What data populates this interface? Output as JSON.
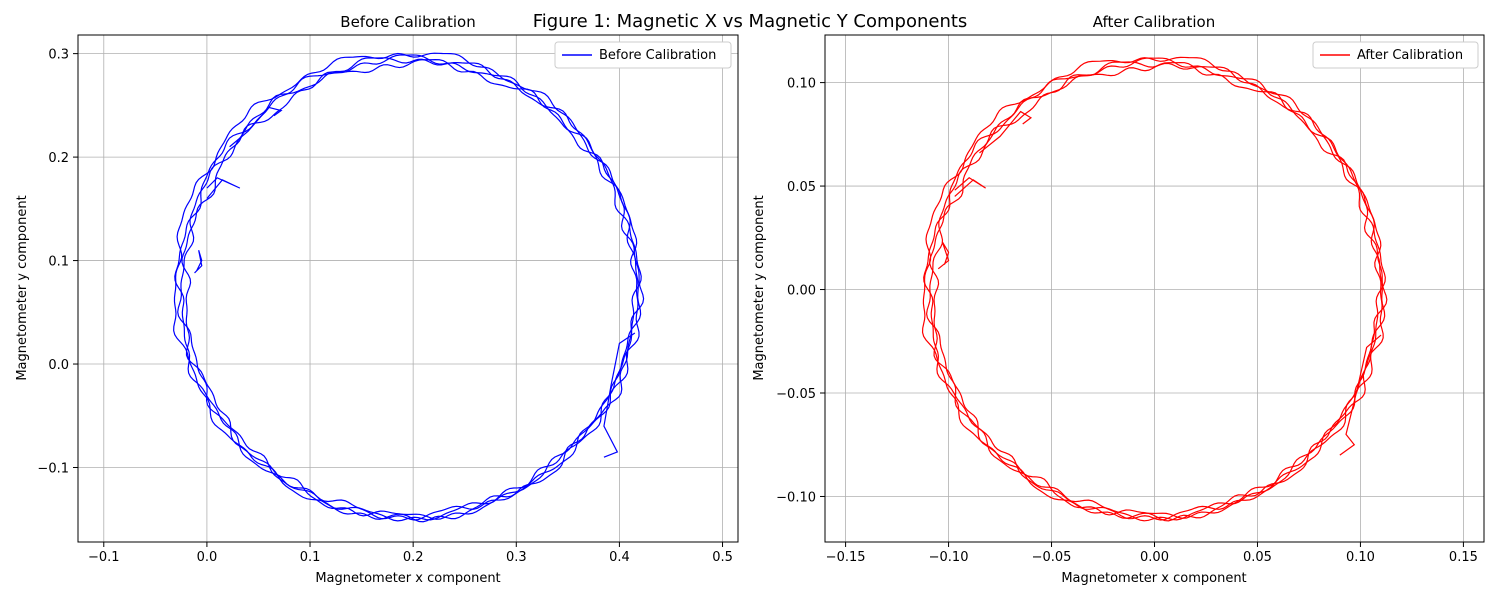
{
  "figure_title": "Figure 1: Magnetic X vs Magnetic Y Components",
  "chart_data": [
    {
      "type": "line",
      "title": "Before Calibration",
      "xlabel": "Magnetometer x component",
      "ylabel": "Magnetometer y component",
      "xlim": [
        -0.125,
        0.515
      ],
      "ylim": [
        -0.172,
        0.318
      ],
      "xticks": [
        -0.1,
        0.0,
        0.1,
        0.2,
        0.3,
        0.4,
        0.5
      ],
      "yticks": [
        -0.1,
        0.0,
        0.1,
        0.2,
        0.3
      ],
      "xtick_labels": [
        "−0.1",
        "0.0",
        "0.1",
        "0.2",
        "0.3",
        "0.4",
        "0.5"
      ],
      "ytick_labels": [
        "−0.1",
        "0.0",
        "0.1",
        "0.2",
        "0.3"
      ],
      "grid": true,
      "legend_position": "top-right",
      "series": [
        {
          "name": "Before Calibration",
          "color": "#0000ff",
          "trace": {
            "center": [
              0.195,
              0.073
            ],
            "radius": 0.222,
            "loops": [
              {
                "offset": [
                  0.0,
                  0.0
                ],
                "radius_scale": 1.0,
                "wobble": 0.003,
                "phase": 0.0
              },
              {
                "offset": [
                  0.003,
                  -0.002
                ],
                "radius_scale": 0.99,
                "wobble": 0.0035,
                "phase": 1.3
              },
              {
                "offset": [
                  -0.002,
                  0.003
                ],
                "radius_scale": 1.01,
                "wobble": 0.0028,
                "phase": 2.6
              },
              {
                "offset": [
                  0.002,
                  0.001
                ],
                "radius_scale": 0.995,
                "wobble": 0.0032,
                "phase": 3.9
              }
            ],
            "excursions": [
              [
                [
                  0.415,
                  0.03
                ],
                [
                  0.4,
                  0.02
                ],
                [
                  0.392,
                  -0.02
                ],
                [
                  0.385,
                  -0.06
                ],
                [
                  0.398,
                  -0.085
                ],
                [
                  0.385,
                  -0.09
                ]
              ],
              [
                [
                  0.0,
                  0.17
                ],
                [
                  0.01,
                  0.18
                ],
                [
                  0.032,
                  0.17
                ],
                [
                  0.015,
                  0.178
                ],
                [
                  0.0,
                  0.16
                ]
              ],
              [
                [
                  -0.01,
                  0.09
                ],
                [
                  -0.005,
                  0.1
                ],
                [
                  -0.008,
                  0.11
                ],
                [
                  -0.005,
                  0.095
                ],
                [
                  -0.012,
                  0.088
                ]
              ],
              [
                [
                  0.022,
                  0.21
                ],
                [
                  0.04,
                  0.225
                ],
                [
                  0.06,
                  0.248
                ],
                [
                  0.072,
                  0.245
                ],
                [
                  0.065,
                  0.24
                ]
              ]
            ]
          }
        }
      ]
    },
    {
      "type": "line",
      "title": "After Calibration",
      "xlabel": "Magnetometer x component",
      "ylabel": "Magnetometer y component",
      "xlim": [
        -0.16,
        0.16
      ],
      "ylim": [
        -0.122,
        0.123
      ],
      "xticks": [
        -0.15,
        -0.1,
        -0.05,
        0.0,
        0.05,
        0.1,
        0.15
      ],
      "yticks": [
        -0.1,
        -0.05,
        0.0,
        0.05,
        0.1
      ],
      "xtick_labels": [
        "−0.15",
        "−0.10",
        "−0.05",
        "0.00",
        "0.05",
        "0.10",
        "0.15"
      ],
      "ytick_labels": [
        "−0.10",
        "−0.05",
        "0.00",
        "0.05",
        "0.10"
      ],
      "grid": true,
      "legend_position": "top-right",
      "series": [
        {
          "name": "After Calibration",
          "color": "#ff0000",
          "trace": {
            "center": [
              0.0,
              0.0
            ],
            "radius": 0.11,
            "loops": [
              {
                "offset": [
                  0.0,
                  0.0
                ],
                "radius_scale": 1.0,
                "wobble": 0.0015,
                "phase": 0.0
              },
              {
                "offset": [
                  0.001,
                  -0.001
                ],
                "radius_scale": 0.99,
                "wobble": 0.0018,
                "phase": 1.3
              },
              {
                "offset": [
                  -0.001,
                  0.001
                ],
                "radius_scale": 1.01,
                "wobble": 0.0014,
                "phase": 2.6
              },
              {
                "offset": [
                  0.001,
                  0.0
                ],
                "radius_scale": 0.995,
                "wobble": 0.0016,
                "phase": 3.9
              }
            ],
            "excursions": [
              [
                [
                  0.11,
                  -0.022
                ],
                [
                  0.103,
                  -0.028
                ],
                [
                  0.098,
                  -0.05
                ],
                [
                  0.093,
                  -0.07
                ],
                [
                  0.097,
                  -0.075
                ],
                [
                  0.09,
                  -0.08
                ]
              ],
              [
                [
                  -0.097,
                  0.048
                ],
                [
                  -0.09,
                  0.054
                ],
                [
                  -0.082,
                  0.049
                ],
                [
                  -0.088,
                  0.053
                ],
                [
                  -0.097,
                  0.045
                ]
              ],
              [
                [
                  -0.102,
                  0.012
                ],
                [
                  -0.1,
                  0.018
                ],
                [
                  -0.103,
                  0.023
                ],
                [
                  -0.1,
                  0.014
                ],
                [
                  -0.105,
                  0.01
                ]
              ],
              [
                [
                  -0.085,
                  0.066
                ],
                [
                  -0.075,
                  0.074
                ],
                [
                  -0.065,
                  0.086
                ],
                [
                  -0.06,
                  0.083
                ],
                [
                  -0.064,
                  0.08
                ]
              ]
            ]
          }
        }
      ]
    }
  ]
}
